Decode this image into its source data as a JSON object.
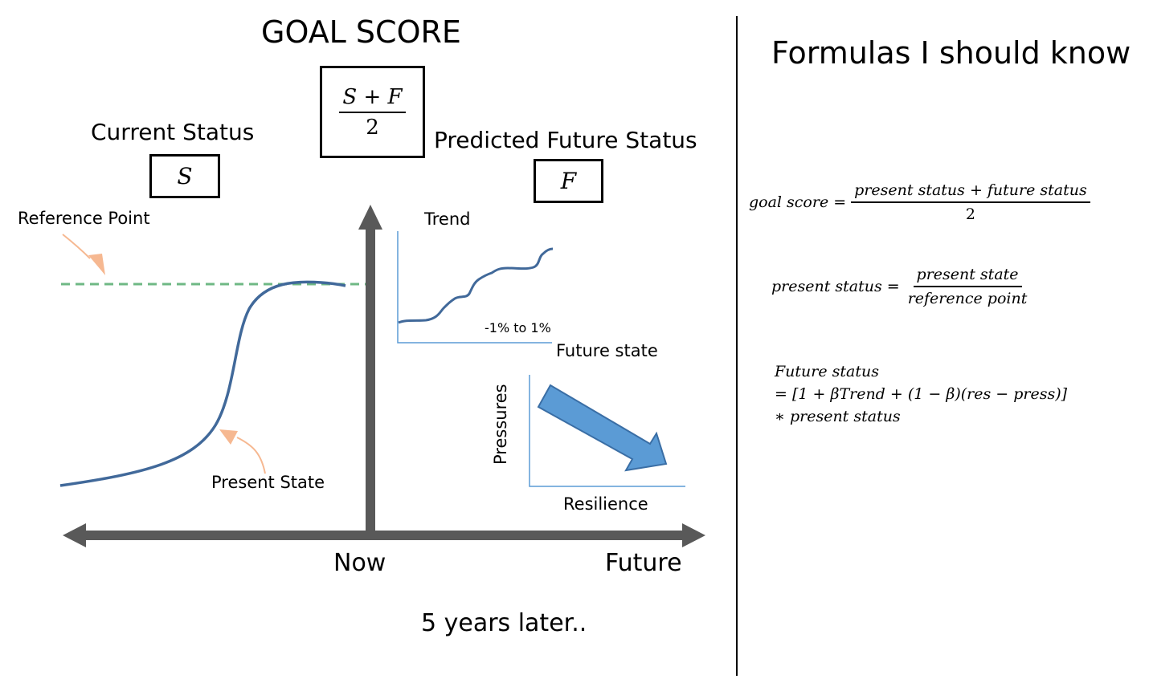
{
  "left": {
    "title": "GOAL SCORE",
    "goal_box": {
      "numerator": "S + F",
      "denominator": "2"
    },
    "current_status": {
      "label": "Current Status",
      "symbol": "S"
    },
    "future_status": {
      "label": "Predicted Future Status",
      "symbol": "F"
    },
    "reference_point_label": "Reference Point",
    "present_state_label": "Present State",
    "trend": {
      "label": "Trend",
      "range_label": "-1% to 1%",
      "axis_label": "Future state"
    },
    "pressures_chart": {
      "y_label": "Pressures",
      "x_label": "Resilience"
    },
    "axis": {
      "now_label": "Now",
      "future_label": "Future"
    },
    "caption": "5 years later.."
  },
  "right": {
    "title": "Formulas I should know",
    "formula1": {
      "lhs": "goal score =",
      "numerator": "present status + future status",
      "denominator": "2"
    },
    "formula2": {
      "lhs": "present status =",
      "numerator": "present state",
      "denominator": "reference point"
    },
    "formula3": {
      "line1": "Future status",
      "line2": "= [1 + βTrend + (1 − β)(res − press)]",
      "line3": "∗ present status"
    }
  },
  "colors": {
    "curve": "#41699a",
    "reference_line": "#6fb884",
    "arrow_fill": "#5b9bd5",
    "arrow_stroke": "#3a6ea5",
    "callout": "#f6b891",
    "axis": "#595959",
    "chart_axis": "#5b9bd5"
  }
}
